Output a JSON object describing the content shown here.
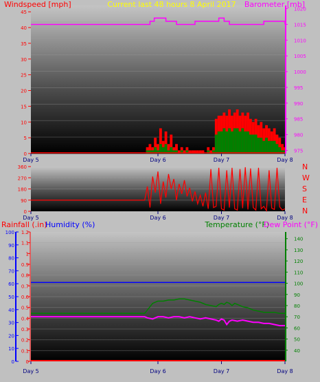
{
  "colors": {
    "background": "#c0c0c0",
    "wind": "#ff0000",
    "barometer": "#ff00ff",
    "title": "#ffff00",
    "humidity": "#0000ff",
    "temperature": "#008000",
    "dewpoint": "#ff00ff",
    "rainfall": "#ff0000",
    "day_labels": "#000080"
  },
  "chart_data": [
    {
      "type": "line",
      "title": "Current last 48 hours 8 April 2017",
      "ylabel_left": "Windspeed [mph]",
      "ylabel_right": "Barometer [mb]",
      "x_ticks": [
        "Day 5",
        "Day 6",
        "Day 7",
        "Day 8"
      ],
      "x_tick_hours": [
        0,
        24,
        36,
        48
      ],
      "y_left_ticks": [
        "0",
        "5",
        "10",
        "15",
        "20",
        "25",
        "30",
        "35",
        "40",
        "45"
      ],
      "y_left_range": [
        0,
        47
      ],
      "y_right_ticks": [
        "975",
        "980",
        "985",
        "990",
        "995",
        "1000",
        "1005",
        "1010",
        "1015",
        "1020"
      ],
      "y_right_range": [
        974,
        1021
      ],
      "series": [
        {
          "id": "barometer",
          "x": [
            0,
            21.5,
            22.5,
            23.3,
            24.5,
            25.5,
            27.5,
            29.5,
            31,
            33.5,
            35,
            35.5,
            36.5,
            37.5,
            40,
            42,
            44,
            45,
            47,
            48
          ],
          "values": [
            1015,
            1015,
            1016,
            1017,
            1017,
            1016,
            1015,
            1015,
            1016,
            1016,
            1016,
            1017,
            1016,
            1015,
            1015,
            1015,
            1016,
            1016,
            1016,
            1015
          ]
        },
        {
          "id": "wind_gust",
          "x": [
            0,
            21.5,
            22,
            22.5,
            23,
            23.5,
            24,
            24.5,
            25,
            25.5,
            26,
            26.5,
            27,
            27.5,
            28,
            28.5,
            29,
            29.5,
            30,
            30.5,
            31,
            31.5,
            32,
            32.5,
            33,
            33.5,
            34,
            34.5,
            35,
            35.5,
            36,
            36.5,
            37,
            37.5,
            38,
            38.5,
            39,
            39.5,
            40,
            40.5,
            41,
            41.5,
            42,
            42.5,
            43,
            43.5,
            44,
            44.5,
            45,
            45.5,
            46,
            46.5,
            47,
            47.5,
            48
          ],
          "values": [
            0,
            0,
            2,
            3,
            2,
            5,
            3,
            8,
            4,
            7,
            3,
            6,
            2,
            3,
            1,
            2,
            1,
            2,
            1,
            1,
            1,
            1,
            1,
            1,
            0,
            2,
            1,
            2,
            11,
            12,
            12,
            13,
            12,
            14,
            12,
            13,
            14,
            12,
            13,
            12,
            13,
            11,
            10,
            11,
            9,
            10,
            8,
            9,
            8,
            7,
            8,
            6,
            5,
            3,
            2
          ]
        },
        {
          "id": "wind_average",
          "x": [
            0,
            21.5,
            22,
            22.5,
            23,
            23.5,
            24,
            24.5,
            25,
            25.5,
            26,
            26.5,
            27,
            27.5,
            28,
            28.5,
            29,
            29.5,
            30,
            30.5,
            31,
            31.5,
            32,
            32.5,
            33,
            33.5,
            34,
            34.5,
            35,
            35.5,
            36,
            36.5,
            37,
            37.5,
            38,
            38.5,
            39,
            39.5,
            40,
            40.5,
            41,
            41.5,
            42,
            42.5,
            43,
            43.5,
            44,
            44.5,
            45,
            45.5,
            46,
            46.5,
            47,
            47.5,
            48
          ],
          "values": [
            0,
            0,
            1,
            1,
            1,
            2,
            1,
            3,
            2,
            3,
            1,
            2,
            1,
            1,
            0,
            1,
            0,
            1,
            0,
            0,
            0,
            0,
            0,
            0,
            0,
            1,
            0,
            1,
            6,
            7,
            7,
            8,
            7,
            8,
            7,
            8,
            8,
            7,
            8,
            7,
            7,
            6,
            6,
            6,
            5,
            5,
            4,
            5,
            4,
            4,
            4,
            3,
            2,
            1,
            1
          ]
        }
      ]
    },
    {
      "type": "scatter",
      "ylabel_right_letters": [
        "N",
        "W",
        "S",
        "E",
        "N"
      ],
      "x_ticks": [
        "Day 5",
        "Day 6",
        "Day 7",
        "Day 8"
      ],
      "x_tick_hours": [
        0,
        24,
        36,
        48
      ],
      "y_ticks": [
        "0",
        "90",
        "180",
        "270",
        "360"
      ],
      "y_range": [
        0,
        360
      ],
      "series": [
        {
          "id": "wind_direction",
          "x": [
            0,
            21.5,
            22,
            22.5,
            23,
            23.5,
            24,
            24.5,
            25,
            25.5,
            26,
            26.5,
            27,
            27.5,
            28,
            28.5,
            29,
            29.5,
            30,
            30.5,
            31,
            31.5,
            32,
            32.5,
            33,
            33.5,
            34,
            34.5,
            35,
            35.5,
            36,
            36.5,
            37,
            37.5,
            38,
            38.5,
            39,
            39.5,
            40,
            40.5,
            41,
            41.5,
            42,
            42.5,
            43,
            43.5,
            44,
            44.5,
            45,
            45.5,
            46,
            46.5,
            47,
            47.5,
            48
          ],
          "values": [
            90,
            90,
            200,
            30,
            280,
            150,
            320,
            60,
            240,
            110,
            300,
            180,
            260,
            90,
            220,
            140,
            250,
            120,
            190,
            80,
            160,
            60,
            130,
            40,
            150,
            20,
            340,
            30,
            40,
            350,
            20,
            10,
            330,
            30,
            350,
            20,
            10,
            340,
            25,
            355,
            15,
            345,
            30,
            10,
            350,
            20,
            40,
            5,
            330,
            25,
            15,
            350,
            35,
            10,
            20
          ]
        }
      ]
    },
    {
      "type": "line",
      "ylabel_left": "Rainfall (.in)",
      "ylabel_humidity": "Humidity (%)",
      "ylabel_temperature": "Temperature (°F)",
      "ylabel_dewpoint": "Dew Point (°F)",
      "x_ticks": [
        "Day 5",
        "Day 6",
        "Day 7",
        "Day 8"
      ],
      "x_tick_hours": [
        0,
        24,
        36,
        48
      ],
      "y_rain_ticks": [
        "0",
        "0.1",
        "0.2",
        "0.3",
        "0.4",
        "0.5",
        "0.6",
        "0.7",
        "0.8",
        "0.9",
        "1",
        "1.1",
        "1.2"
      ],
      "y_rain_range": [
        0,
        1.2
      ],
      "y_humidity_ticks": [
        "0",
        "10",
        "20",
        "30",
        "40",
        "50",
        "60",
        "70",
        "80",
        "90",
        "100"
      ],
      "y_humidity_range": [
        0,
        100
      ],
      "y_temp_ticks": [
        "40",
        "50",
        "60",
        "70",
        "80",
        "90",
        "100",
        "110",
        "120",
        "130",
        "140"
      ],
      "y_temp_range": [
        30,
        146
      ],
      "series": [
        {
          "id": "humidity",
          "x": [
            0,
            48
          ],
          "values": [
            61,
            61
          ]
        },
        {
          "id": "temperature",
          "x": [
            0,
            21.5,
            22,
            22.5,
            23,
            23.5,
            24,
            25,
            26,
            27,
            28,
            29,
            30,
            31,
            32,
            33,
            34,
            35,
            35.5,
            36,
            36.5,
            37,
            37.5,
            38,
            38.5,
            39,
            39.5,
            40,
            41,
            42,
            43,
            44,
            45,
            46,
            47,
            48
          ],
          "values": [
            73,
            73,
            76,
            79,
            82,
            83,
            84,
            84,
            85,
            85,
            86,
            86,
            85,
            84,
            83,
            81,
            80,
            79,
            81,
            82,
            81,
            83,
            82,
            80,
            82,
            81,
            80,
            79,
            78,
            76,
            75,
            74,
            74,
            74,
            73,
            73
          ]
        },
        {
          "id": "dew_point",
          "x": [
            0,
            21.5,
            22,
            23,
            24,
            25,
            26,
            27,
            28,
            29,
            30,
            31,
            32,
            33,
            34,
            35,
            35.5,
            36,
            36.5,
            37,
            37.5,
            38,
            39,
            40,
            41,
            42,
            43,
            44,
            45,
            46,
            47,
            48
          ],
          "values": [
            70,
            70,
            69,
            68,
            70,
            70,
            69,
            70,
            70,
            69,
            70,
            69,
            68,
            69,
            68,
            67,
            66,
            68,
            67,
            63,
            66,
            67,
            66,
            67,
            66,
            65,
            65,
            64,
            64,
            63,
            62,
            62
          ]
        },
        {
          "id": "rainfall",
          "x": [
            0,
            48
          ],
          "values": [
            0,
            0
          ]
        }
      ]
    }
  ]
}
